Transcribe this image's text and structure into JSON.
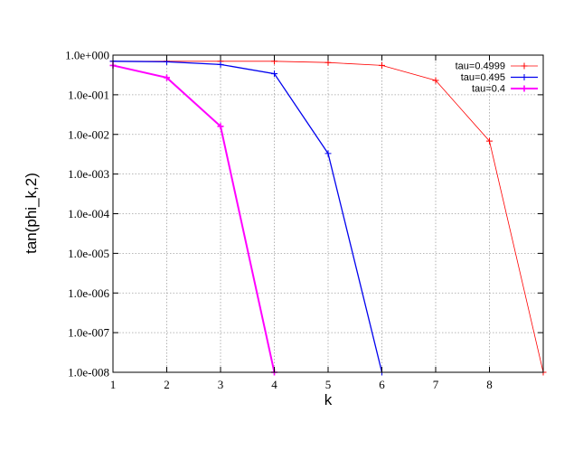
{
  "chart_data": {
    "type": "line",
    "xlabel": "k",
    "ylabel": "tan(phi_k,2)",
    "xlim": [
      1,
      9
    ],
    "ylim": [
      1e-08,
      1
    ],
    "yscale": "log",
    "grid": true,
    "legend_position": "top-right",
    "x_ticks": [
      "1",
      "2",
      "3",
      "4",
      "5",
      "6",
      "7",
      "8"
    ],
    "y_ticks": [
      "1.0e+000",
      "1.0e-001",
      "1.0e-002",
      "1.0e-003",
      "1.0e-004",
      "1.0e-005",
      "1.0e-006",
      "1.0e-007",
      "1.0e-008"
    ],
    "series": [
      {
        "name": "tau=0.4999",
        "color": "#ff0000",
        "stroke_width": 0.8,
        "x": [
          1,
          2,
          3,
          4,
          5,
          6,
          7,
          8,
          9
        ],
        "y": [
          0.7,
          0.7,
          0.7,
          0.7,
          0.65,
          0.55,
          0.23,
          0.0068,
          1e-08
        ]
      },
      {
        "name": "tau=0.495",
        "color": "#0000ee",
        "stroke_width": 1.3,
        "x": [
          1,
          2,
          3,
          4,
          5,
          6
        ],
        "y": [
          0.7,
          0.68,
          0.58,
          0.34,
          0.0033,
          1e-08
        ]
      },
      {
        "name": "tau=0.4",
        "color": "#ff00ff",
        "stroke_width": 2,
        "x": [
          1,
          2,
          3,
          4
        ],
        "y": [
          0.55,
          0.27,
          0.016,
          1e-08
        ]
      }
    ]
  }
}
